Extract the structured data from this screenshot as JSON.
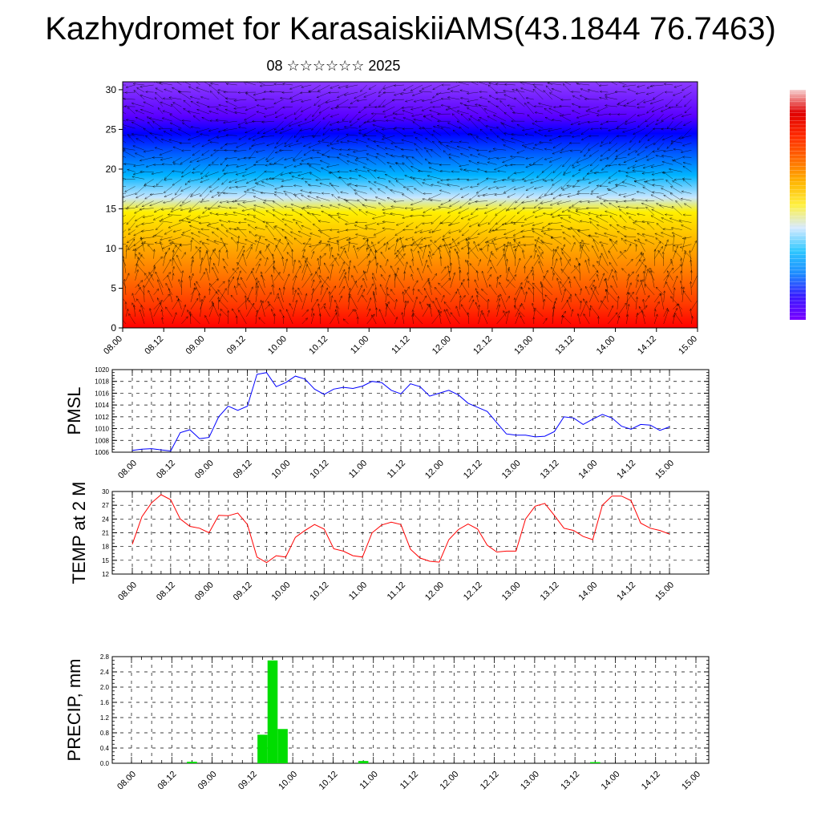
{
  "header": {
    "title": "Kazhydromet for KarasaiskiiAMS(43.1844 76.7463)",
    "subtitle": "08 ☆☆☆☆☆☆ 2025"
  },
  "x_tick_labels": [
    "08.00",
    "08.12",
    "09.00",
    "09.12",
    "10.00",
    "10.12",
    "11.00",
    "11.12",
    "12.00",
    "12.12",
    "13.00",
    "13.12",
    "14.00",
    "14.12",
    "15.00"
  ],
  "chart_data": [
    {
      "type": "heatmap",
      "name": "cross-section",
      "x_ticks": [
        "08.00",
        "08.12",
        "09.00",
        "09.12",
        "10.00",
        "10.12",
        "11.00",
        "11.12",
        "12.00",
        "12.12",
        "13.00",
        "13.12",
        "14.00",
        "14.12",
        "15.00"
      ],
      "y_ticks": [
        0,
        5,
        10,
        15,
        20,
        25,
        30
      ],
      "ylim": [
        0,
        31
      ],
      "colormap": [
        "#ff0000",
        "#ff3c00",
        "#ff7800",
        "#ffb400",
        "#fff000",
        "#c8e6ff",
        "#00b4ff",
        "#0050ff",
        "#0000ff",
        "#5a00ff",
        "#8c3cff"
      ],
      "colorbar_colors_bottom_to_top": [
        "#7a00ff",
        "#3a1aff",
        "#1d8cff",
        "#2ec8ff",
        "#d6eaff",
        "#fff040",
        "#ffb400",
        "#ff6a00",
        "#ff2a00",
        "#e00000",
        "#f6d0d0"
      ],
      "note_overlay": "wind vectors"
    },
    {
      "type": "line",
      "name": "PMSL",
      "ylabel": "PMSL",
      "color": "#0000ff",
      "ylim": [
        1006,
        1020
      ],
      "y_ticks": [
        1006,
        1008,
        1010,
        1012,
        1014,
        1016,
        1018,
        1020
      ],
      "x_ticks": [
        "08.00",
        "08.12",
        "09.00",
        "09.12",
        "10.00",
        "10.12",
        "11.00",
        "11.12",
        "12.00",
        "12.12",
        "13.00",
        "13.12",
        "14.00",
        "14.12",
        "15.00"
      ],
      "x_hours": [
        0,
        3,
        6,
        9,
        12,
        15,
        18,
        21,
        24,
        27,
        30,
        33,
        36,
        39,
        42,
        45,
        48,
        51,
        54,
        57,
        60,
        63,
        66,
        69,
        72,
        75,
        78,
        81,
        84,
        87,
        90,
        93,
        96,
        99,
        102,
        105,
        108,
        111,
        114,
        117,
        120,
        123,
        126,
        129,
        132,
        135,
        138,
        141,
        144,
        147,
        150,
        153,
        156,
        159,
        162,
        165,
        168
      ],
      "values": [
        1006.3,
        1006.5,
        1006.6,
        1006.4,
        1006.2,
        1009.3,
        1009.8,
        1008.3,
        1008.5,
        1012.0,
        1013.8,
        1013.1,
        1013.8,
        1019.2,
        1019.5,
        1017.1,
        1017.8,
        1018.9,
        1018.4,
        1016.7,
        1015.8,
        1016.7,
        1017.0,
        1016.8,
        1017.2,
        1018.0,
        1017.8,
        1016.5,
        1015.9,
        1017.6,
        1017.1,
        1015.5,
        1016.0,
        1016.5,
        1015.7,
        1014.3,
        1013.6,
        1012.9,
        1011.0,
        1009.1,
        1008.9,
        1008.9,
        1008.6,
        1008.7,
        1009.5,
        1012.0,
        1011.8,
        1010.7,
        1011.6,
        1012.4,
        1011.8,
        1010.4,
        1009.9,
        1010.7,
        1010.6,
        1009.7,
        1010.3
      ]
    },
    {
      "type": "line",
      "name": "TEMP at 2 M",
      "ylabel": "TEMP at 2 M",
      "color": "#ff0000",
      "ylim": [
        12,
        30
      ],
      "y_ticks": [
        12,
        15,
        18,
        21,
        24,
        27,
        30
      ],
      "x_ticks": [
        "08.00",
        "08.12",
        "09.00",
        "09.12",
        "10.00",
        "10.12",
        "11.00",
        "11.12",
        "12.00",
        "12.12",
        "13.00",
        "13.12",
        "14.00",
        "14.12",
        "15.00"
      ],
      "x_hours": [
        0,
        3,
        6,
        9,
        12,
        15,
        18,
        21,
        24,
        27,
        30,
        33,
        36,
        39,
        42,
        45,
        48,
        51,
        54,
        57,
        60,
        63,
        66,
        69,
        72,
        75,
        78,
        81,
        84,
        87,
        90,
        93,
        96,
        99,
        102,
        105,
        108,
        111,
        114,
        117,
        120,
        123,
        126,
        129,
        132,
        135,
        138,
        141,
        144,
        147,
        150,
        153,
        156,
        159,
        162,
        165,
        168
      ],
      "values": [
        18.5,
        24.5,
        27.5,
        29.3,
        28.2,
        24.0,
        22.4,
        22.0,
        21.0,
        24.8,
        24.7,
        25.3,
        22.8,
        15.7,
        14.5,
        16.0,
        15.7,
        20.0,
        21.5,
        22.8,
        21.8,
        17.5,
        17.0,
        16.0,
        15.7,
        21.0,
        22.7,
        23.3,
        22.8,
        17.4,
        15.5,
        14.8,
        14.6,
        19.5,
        21.7,
        22.9,
        21.8,
        18.3,
        16.8,
        17.0,
        17.0,
        24.0,
        26.8,
        27.4,
        24.8,
        22.0,
        21.5,
        20.2,
        19.5,
        27.0,
        29.0,
        29.0,
        28.0,
        23.1,
        22.0,
        21.5,
        20.7
      ]
    },
    {
      "type": "bar",
      "name": "PRECIP, mm",
      "ylabel": "PRECIP, mm",
      "color": "#00dd00",
      "ylim": [
        0,
        2.8
      ],
      "y_ticks": [
        "0.0",
        "0.4",
        "0.8",
        "1.2",
        "1.6",
        "2.0",
        "2.4",
        "2.8"
      ],
      "x_ticks": [
        "08.00",
        "08.12",
        "09.00",
        "09.12",
        "10.00",
        "10.12",
        "11.00",
        "11.12",
        "12.00",
        "12.12",
        "13.00",
        "13.12",
        "14.00",
        "14.12",
        "15.00"
      ],
      "bars": [
        {
          "x_hour": 18,
          "value": 0.04
        },
        {
          "x_hour": 39,
          "value": 0.75
        },
        {
          "x_hour": 42,
          "value": 2.7
        },
        {
          "x_hour": 45,
          "value": 0.9
        },
        {
          "x_hour": 69,
          "value": 0.06
        },
        {
          "x_hour": 138,
          "value": 0.03
        }
      ]
    }
  ]
}
